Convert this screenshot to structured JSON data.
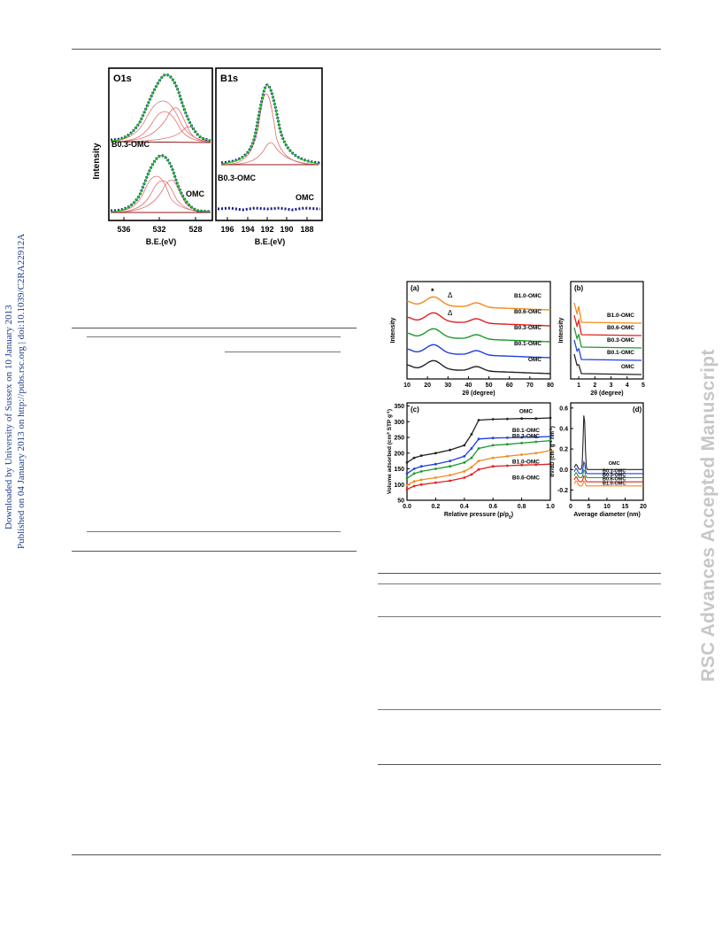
{
  "sidebar_left": {
    "line1": "Downloaded by University of Sussex on 10 January 2013",
    "line2": "Published on 04 January 2013 on http://pubs.rsc.org | doi:10.1039/C2RA22912A"
  },
  "sidebar_right": {
    "watermark": "RSC Advances Accepted Manuscript"
  },
  "colors": {
    "black_series": "#222222",
    "blue_series": "#1f3fe0",
    "green_series": "#1a9a2a",
    "red_series": "#e02020",
    "orange_series": "#f28a1a",
    "xps_data": "#1a1a8a",
    "xps_fit": "#28c828",
    "xps_component": "#e07070"
  },
  "xps_figure": {
    "o1s": {
      "title": "O1s",
      "label_top": "B0.3-OMC",
      "label_bottom": "OMC",
      "x_ticks": [
        "536",
        "532",
        "528"
      ],
      "xlabel": "B.E.(eV)"
    },
    "b1s": {
      "title": "B1s",
      "label_top": "B0.3-OMC",
      "label_bottom": "OMC",
      "x_ticks": [
        "196",
        "194",
        "192",
        "190",
        "188"
      ],
      "xlabel": "B.E.(eV)"
    },
    "ylabel": "Intensity"
  },
  "chart_data": [
    {
      "type": "line",
      "panel": "(a)",
      "xlabel": "2θ (degree)",
      "ylabel": "Intensity",
      "x_ticks": [
        "10",
        "20",
        "30",
        "40",
        "50",
        "60",
        "70",
        "80"
      ],
      "xlim": [
        10,
        80
      ],
      "series_labels": [
        "B1.0-OMC",
        "B0.6-OMC",
        "B0.3-OMC",
        "B0.1-OMC",
        "OMC"
      ],
      "markers": [
        "*",
        "Δ",
        "Δ"
      ]
    },
    {
      "type": "line",
      "panel": "(b)",
      "xlabel": "2θ (degree)",
      "ylabel": "Intensity",
      "x_ticks": [
        "1",
        "2",
        "3",
        "4",
        "5"
      ],
      "xlim": [
        0.5,
        5
      ],
      "series_labels": [
        "B1.0-OMC",
        "B0.6-OMC",
        "B0.3-OMC",
        "B0.1-OMC",
        "OMC"
      ]
    },
    {
      "type": "line",
      "panel": "(c)",
      "xlabel": "Relative pressure (p/p",
      "xlabel_sub": "0",
      "xlabel_end": ")",
      "ylabel": "Volume adsorbed (cm",
      "ylabel_mid": " STP g",
      "ylabel_end": ")",
      "x_ticks": [
        "0.0",
        "0.2",
        "0.4",
        "0.6",
        "0.8",
        "1.0"
      ],
      "y_ticks": [
        "50",
        "100",
        "150",
        "200",
        "250",
        "300",
        "350"
      ],
      "xlim": [
        0,
        1
      ],
      "ylim": [
        50,
        360
      ],
      "series": [
        {
          "name": "OMC",
          "x": [
            0.0,
            0.05,
            0.1,
            0.2,
            0.3,
            0.4,
            0.45,
            0.5,
            0.6,
            0.7,
            0.8,
            0.9,
            1.0
          ],
          "y": [
            170,
            185,
            192,
            200,
            210,
            225,
            260,
            305,
            308,
            309,
            310,
            310,
            312
          ]
        },
        {
          "name": "B0.1-OMC",
          "x": [
            0.0,
            0.05,
            0.1,
            0.2,
            0.3,
            0.4,
            0.45,
            0.5,
            0.6,
            0.7,
            0.8,
            0.9,
            1.0
          ],
          "y": [
            135,
            150,
            158,
            165,
            175,
            190,
            215,
            245,
            248,
            249,
            250,
            251,
            253
          ]
        },
        {
          "name": "B0.3-OMC",
          "x": [
            0.0,
            0.05,
            0.1,
            0.2,
            0.3,
            0.4,
            0.45,
            0.5,
            0.6,
            0.7,
            0.8,
            0.9,
            1.0
          ],
          "y": [
            120,
            135,
            142,
            150,
            158,
            170,
            185,
            215,
            225,
            228,
            232,
            236,
            240
          ]
        },
        {
          "name": "B1.0-OMC",
          "x": [
            0.0,
            0.05,
            0.1,
            0.2,
            0.3,
            0.4,
            0.45,
            0.5,
            0.6,
            0.7,
            0.8,
            0.9,
            1.0
          ],
          "y": [
            98,
            110,
            115,
            122,
            130,
            142,
            155,
            175,
            185,
            190,
            195,
            200,
            208
          ]
        },
        {
          "name": "B0.6-OMC",
          "x": [
            0.0,
            0.05,
            0.1,
            0.2,
            0.3,
            0.4,
            0.45,
            0.5,
            0.6,
            0.7,
            0.8,
            0.9,
            1.0
          ],
          "y": [
            85,
            95,
            100,
            106,
            112,
            122,
            132,
            148,
            158,
            160,
            162,
            163,
            165
          ]
        }
      ]
    },
    {
      "type": "line",
      "panel": "(d)",
      "xlabel": "Average diameter (nm)",
      "ylabel": "dV/dD (cm",
      "ylabel_mid": " g",
      "ylabel_mid2": " nm",
      "ylabel_end": ")",
      "x_ticks": [
        "0",
        "5",
        "10",
        "15",
        "20"
      ],
      "y_ticks": [
        "-0.2",
        "0.0",
        "0.2",
        "0.4",
        "0.6"
      ],
      "xlim": [
        0,
        20
      ],
      "ylim": [
        -0.3,
        0.65
      ],
      "series_labels": [
        "OMC",
        "B0.1-OMC",
        "B0.3-OMC",
        "B0.6-OMC",
        "B1.0-OMC"
      ]
    }
  ]
}
